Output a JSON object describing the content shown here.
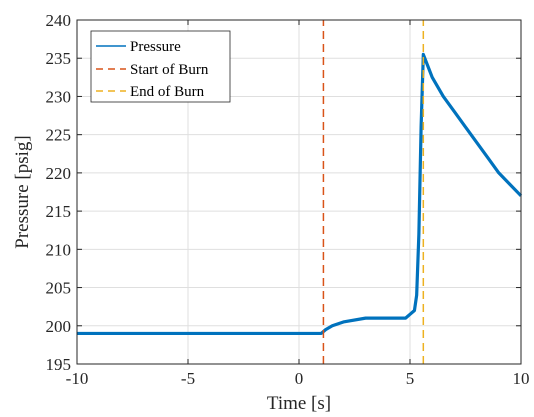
{
  "chart_data": {
    "type": "line",
    "xlabel": "Time [s]",
    "ylabel": "Pressure [psig]",
    "xlim": [
      -10,
      10
    ],
    "ylim": [
      195,
      240
    ],
    "xticks": [
      -10,
      -5,
      0,
      5,
      10
    ],
    "yticks": [
      195,
      200,
      205,
      210,
      215,
      220,
      225,
      230,
      235,
      240
    ],
    "grid": true,
    "legend_position": "top-left",
    "series": [
      {
        "name": "Pressure",
        "color": "#0072BD",
        "style": "solid",
        "x": [
          -10,
          -8,
          -6,
          -4,
          -2,
          0,
          1.0,
          1.2,
          1.5,
          2.0,
          3.0,
          4.0,
          4.8,
          5.0,
          5.2,
          5.3,
          5.4,
          5.5,
          5.6,
          5.8,
          6.0,
          6.5,
          7.0,
          7.5,
          8.0,
          8.5,
          9.0,
          9.5,
          10.0
        ],
        "y": [
          199,
          199,
          199,
          199,
          199,
          199,
          199,
          199.5,
          200,
          200.5,
          201,
          201,
          201,
          201.5,
          202,
          204,
          212,
          226,
          235.5,
          234,
          232.5,
          230,
          228,
          226,
          224,
          222,
          220,
          218.5,
          217
        ]
      },
      {
        "name": "Start of Burn",
        "color": "#D95319",
        "style": "dashed",
        "x": [
          1.1,
          1.1
        ],
        "y": [
          195,
          240
        ]
      },
      {
        "name": "End of Burn",
        "color": "#EDB120",
        "style": "dashed",
        "x": [
          5.6,
          5.6
        ],
        "y": [
          195,
          240
        ]
      }
    ]
  }
}
